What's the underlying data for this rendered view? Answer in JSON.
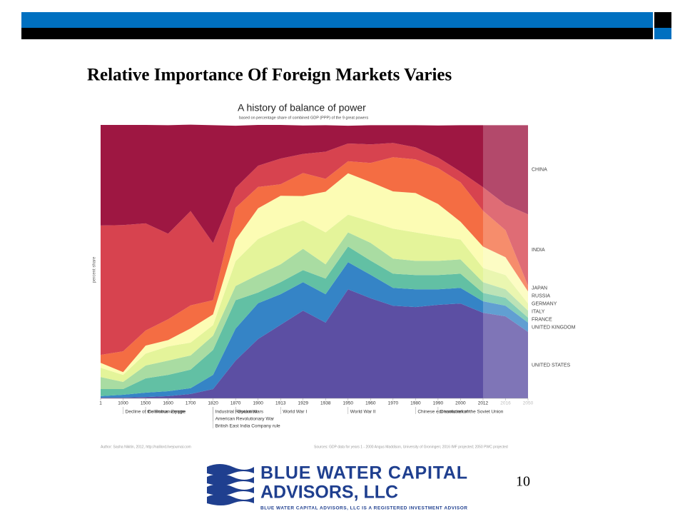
{
  "slide": {
    "title": "Relative Importance Of Foreign Markets Varies",
    "page_number": "10"
  },
  "logo": {
    "line1": "BLUE WATER CAPITAL",
    "line2": "ADVISORS, LLC",
    "tagline": "BLUE WATER CAPITAL ADVISORS, LLC IS A REGISTERED INVESTMENT ADVISOR"
  },
  "chart_data": {
    "type": "area",
    "stacked": true,
    "title": "A history of balance of power",
    "subtitle": "based on percentage share of combined GDP (PPP) of the 9 great powers",
    "y_label": "percent share",
    "categories": [
      "1",
      "1000",
      "1500",
      "1600",
      "1700",
      "1820",
      "1870",
      "1900",
      "1913",
      "1929",
      "1938",
      "1950",
      "1960",
      "1970",
      "1980",
      "1990",
      "2000",
      "2012",
      "2016",
      "2050"
    ],
    "ylim": [
      0,
      100
    ],
    "series": [
      {
        "name": "UNITED STATES",
        "color": "#5c4fa3",
        "values": [
          0.3,
          0.3,
          0.5,
          0.8,
          1.6,
          3.4,
          13.8,
          21.7,
          26.9,
          32.1,
          27.7,
          39.9,
          36.6,
          33.9,
          33.4,
          34.2,
          34.7,
          31.3,
          30.0,
          24.3
        ]
      },
      {
        "name": "UNITED KINGDOM",
        "color": "#3584c6",
        "values": [
          0.5,
          1.0,
          1.6,
          1.8,
          2.1,
          5.2,
          11.7,
          13.1,
          11.2,
          10.4,
          10.4,
          9.9,
          8.6,
          6.5,
          6.5,
          5.7,
          5.7,
          4.2,
          3.9,
          3.4
        ]
      },
      {
        "name": "FRANCE",
        "color": "#62c0a4",
        "values": [
          2.6,
          2.1,
          5.2,
          6.0,
          6.8,
          9.1,
          10.4,
          3.9,
          4.4,
          4.4,
          5.7,
          5.7,
          5.2,
          5.2,
          5.2,
          5.2,
          5.2,
          3.1,
          2.9,
          1.8
        ]
      },
      {
        "name": "ITALY",
        "color": "#a9dca2",
        "values": [
          4.4,
          2.6,
          4.7,
          5.2,
          5.2,
          5.2,
          5.2,
          6.5,
          6.5,
          7.8,
          5.2,
          5.2,
          6.5,
          5.5,
          5.2,
          5.2,
          5.2,
          3.9,
          3.1,
          2.6
        ]
      },
      {
        "name": "GERMANY",
        "color": "#e4f49a",
        "values": [
          3.4,
          2.6,
          4.4,
          5.2,
          4.7,
          3.9,
          9.1,
          13.1,
          13.1,
          10.4,
          11.7,
          6.5,
          7.8,
          11.0,
          10.4,
          9.1,
          7.3,
          5.2,
          5.2,
          2.6
        ]
      },
      {
        "name": "RUSSIA",
        "color": "#fcfcb4",
        "values": [
          1.8,
          1.0,
          2.9,
          2.3,
          5.2,
          3.9,
          7.8,
          11.2,
          12.0,
          8.9,
          14.9,
          15.1,
          14.4,
          13.6,
          14.4,
          11.7,
          6.5,
          7.8,
          6.5,
          4.4
        ]
      },
      {
        "name": "JAPAN",
        "color": "#f46d43",
        "values": [
          2.9,
          7.6,
          5.5,
          7.6,
          8.4,
          5.2,
          11.7,
          7.8,
          4.2,
          8.4,
          4.7,
          4.4,
          7.0,
          12.5,
          12.3,
          13.1,
          14.4,
          13.1,
          9.9,
          2.1
        ]
      },
      {
        "name": "INDIA",
        "color": "#d7434f",
        "values": [
          47.3,
          46.2,
          39.2,
          31.3,
          34.5,
          20.9,
          7.3,
          7.8,
          9.4,
          7.0,
          9.9,
          6.5,
          6.8,
          5.2,
          4.4,
          3.9,
          3.9,
          8.6,
          9.4,
          26.1
        ]
      },
      {
        "name": "CHINA",
        "color": "#9e1742",
        "values": [
          36.8,
          36.6,
          36.0,
          39.7,
          31.6,
          43.1,
          22.7,
          14.9,
          12.3,
          10.4,
          9.7,
          6.5,
          7.0,
          6.5,
          8.1,
          11.7,
          17.0,
          22.7,
          29.0,
          32.6
        ]
      }
    ],
    "annotations": [
      {
        "at": "1000",
        "text": "Decline of the Roman Empire"
      },
      {
        "at": "1500",
        "text": "Columbus voyage"
      },
      {
        "at": "1820",
        "text": "Industrial Revolution"
      },
      {
        "at": "1820",
        "text": "American Revolutionary War"
      },
      {
        "at": "1820",
        "text": "British East India Company rule"
      },
      {
        "at": "1870",
        "text": "Opium Wars"
      },
      {
        "at": "1913",
        "text": "World War I"
      },
      {
        "at": "1950",
        "text": "World War II"
      },
      {
        "at": "1980",
        "text": "Chinese economic reform"
      },
      {
        "at": "1990",
        "text": "Dissolution of the Soviet Union"
      }
    ],
    "author": "Author: Sasha Nikitin, 2012, http://nalilord.livejournal.com",
    "sources": "Sources: GDP data for years 1 - 2000 Angus Maddison, University of Groningen; 2016 IMF projected; 2050 PWC projected"
  }
}
